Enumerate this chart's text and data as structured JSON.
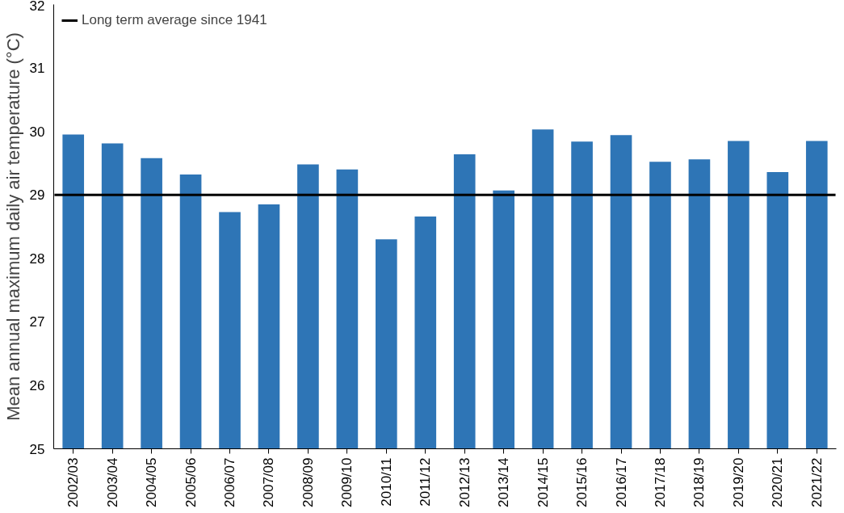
{
  "chart_data": {
    "type": "bar",
    "ylabel": "Mean annual maximum daily air temperature (°C)",
    "categories": [
      "2002/03",
      "2003/04",
      "2004/05",
      "2005/06",
      "2006/07",
      "2007/08",
      "2008/09",
      "2009/10",
      "2010/11",
      "2011/12",
      "2012/13",
      "2013/14",
      "2014/15",
      "2015/16",
      "2016/17",
      "2017/18",
      "2018/19",
      "2019/20",
      "2020/21",
      "2021/22"
    ],
    "values": [
      29.95,
      29.81,
      29.58,
      29.32,
      28.73,
      28.85,
      29.48,
      29.4,
      28.3,
      28.66,
      29.64,
      29.07,
      30.03,
      29.84,
      29.94,
      29.52,
      29.56,
      29.85,
      29.36,
      29.85
    ],
    "color": "#2e75b6",
    "ylim": [
      25,
      32
    ],
    "yticks": [
      25,
      26,
      27,
      28,
      29,
      30,
      31,
      32
    ],
    "ref_lines": [
      {
        "axis": "y",
        "value": 29,
        "label": "Long term average since 1941",
        "color": "#000000"
      }
    ],
    "legend": "top left",
    "grid": false
  }
}
